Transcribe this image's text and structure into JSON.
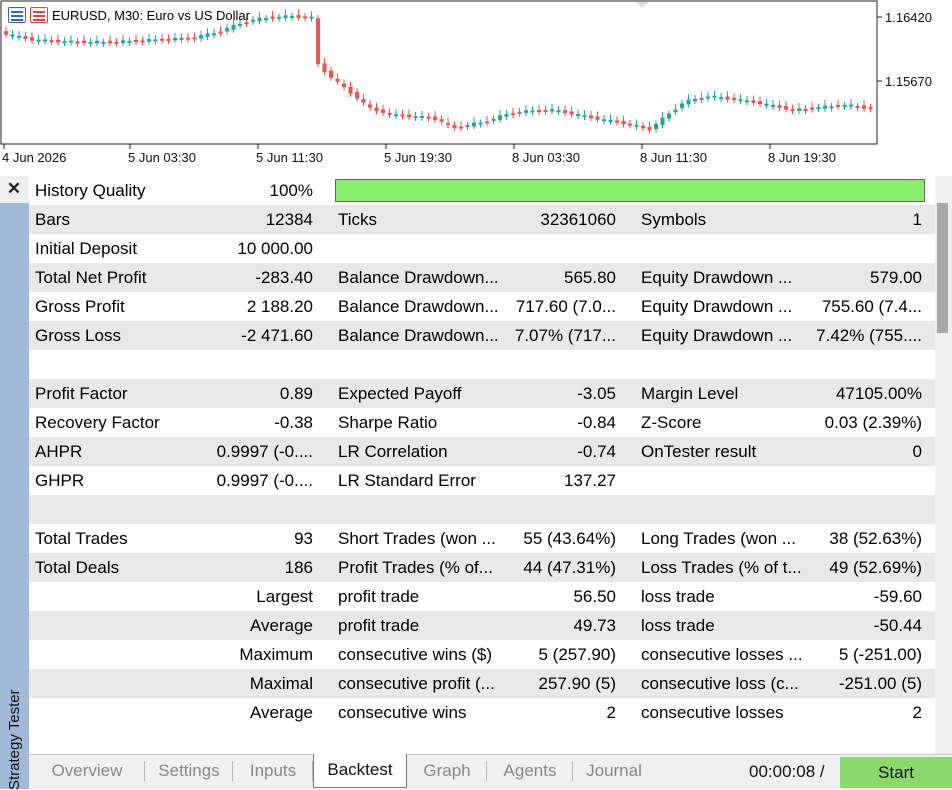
{
  "chart": {
    "symbol_title": "EURUSD, M30:  Euro vs US Dollar",
    "price_labels": [
      "1.16420",
      "1.15670"
    ],
    "time_labels": [
      "4 Jun 2026",
      "5 Jun 03:30",
      "5 Jun 11:30",
      "5 Jun 19:30",
      "8 Jun 03:30",
      "8 Jun 11:30",
      "8 Jun 19:30"
    ],
    "colors": {
      "bull": "#26a69a",
      "bear": "#ef5350"
    },
    "icons": [
      "report-icon",
      "report-icon"
    ]
  },
  "side": {
    "close_label": "✕",
    "panel_label": "Strategy Tester"
  },
  "report": {
    "history_quality": {
      "label": "History Quality",
      "value": "100%",
      "bar_fraction": 1.0,
      "bar_color": "#88ee6e"
    },
    "rows": [
      [
        "Bars",
        "12384",
        "Ticks",
        "32361060",
        "Symbols",
        "1"
      ],
      [
        "Initial Deposit",
        "10 000.00",
        "",
        "",
        "",
        ""
      ],
      [
        "Total Net Profit",
        "-283.40",
        "Balance Drawdown...",
        "565.80",
        "Equity Drawdown ...",
        "579.00"
      ],
      [
        "Gross Profit",
        "2 188.20",
        "Balance Drawdown...",
        "717.60 (7.0...",
        "Equity Drawdown ...",
        "755.60 (7.4..."
      ],
      [
        "Gross Loss",
        "-2 471.60",
        "Balance Drawdown...",
        "7.07% (717...",
        "Equity Drawdown ...",
        "7.42% (755...."
      ],
      [
        "",
        "",
        "",
        "",
        "",
        ""
      ],
      [
        "Profit Factor",
        "0.89",
        "Expected Payoff",
        "-3.05",
        "Margin Level",
        "47105.00%"
      ],
      [
        "Recovery Factor",
        "-0.38",
        "Sharpe Ratio",
        "-0.84",
        "Z-Score",
        "0.03 (2.39%)"
      ],
      [
        "AHPR",
        "0.9997 (-0....",
        "LR Correlation",
        "-0.74",
        "OnTester result",
        "0"
      ],
      [
        "GHPR",
        "0.9997 (-0....",
        "LR Standard Error",
        "137.27",
        "",
        ""
      ],
      [
        "",
        "",
        "",
        "",
        "",
        ""
      ],
      [
        "Total Trades",
        "93",
        "Short Trades (won ...",
        "55 (43.64%)",
        "Long Trades (won ...",
        "38 (52.63%)"
      ],
      [
        "Total Deals",
        "186",
        "Profit Trades (% of...",
        "44 (47.31%)",
        "Loss Trades (% of t...",
        "49 (52.69%)"
      ],
      [
        "",
        "Largest",
        "profit trade",
        "56.50",
        "loss trade",
        "-59.60"
      ],
      [
        "",
        "Average",
        "profit trade",
        "49.73",
        "loss trade",
        "-50.44"
      ],
      [
        "",
        "Maximum",
        "consecutive wins ($)",
        "5 (257.90)",
        "consecutive losses ...",
        "5 (-251.00)"
      ],
      [
        "",
        "Maximal",
        "consecutive profit (...",
        "257.90 (5)",
        "consecutive loss (c...",
        "-251.00 (5)"
      ],
      [
        "",
        "Average",
        "consecutive wins",
        "2",
        "consecutive losses",
        "2"
      ]
    ]
  },
  "tabs": {
    "items": [
      "Overview",
      "Settings",
      "Inputs",
      "Backtest",
      "Graph",
      "Agents",
      "Journal"
    ],
    "active": "Backtest",
    "timer": "00:00:08 /",
    "start_label": "Start"
  }
}
